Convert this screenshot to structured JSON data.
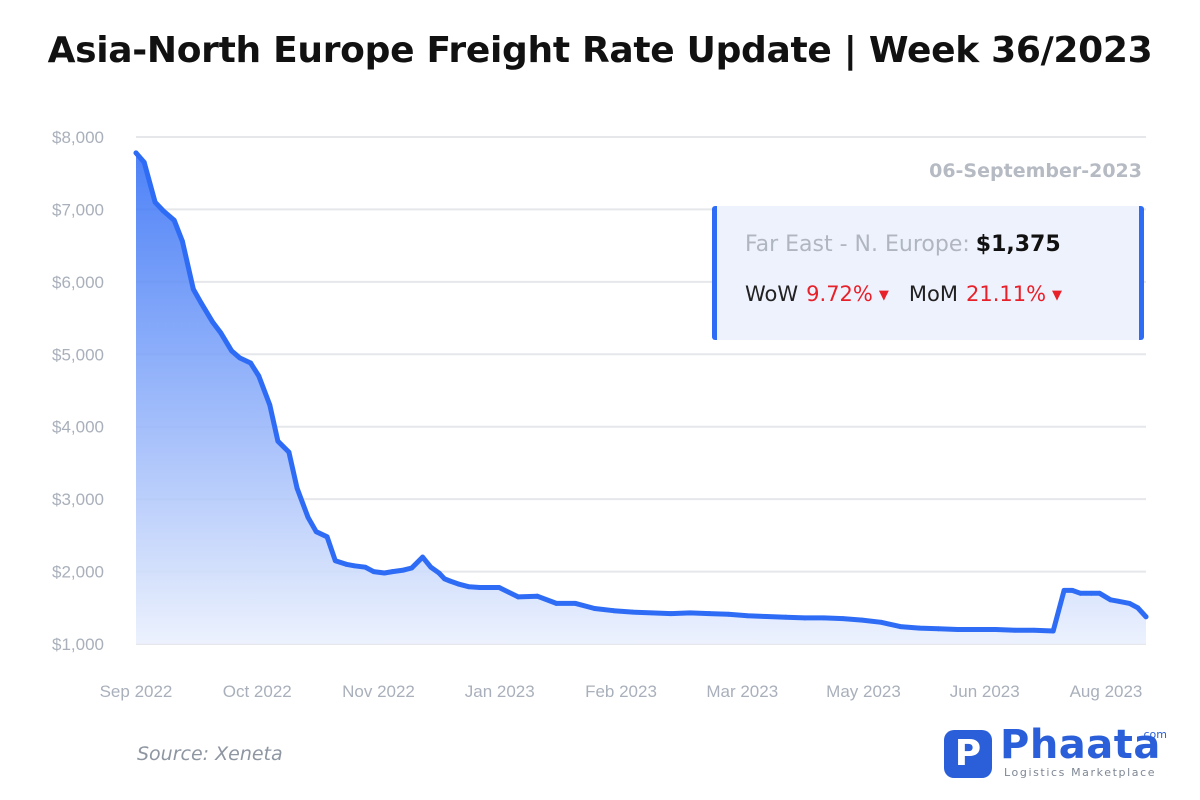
{
  "title": "Asia-North Europe Freight Rate Update | Week 36/2023",
  "info": {
    "date": "06-September-2023",
    "route_label": "Far East - N. Europe:",
    "route_value": "$1,375",
    "wow_label": "WoW",
    "wow_value": "9.72%",
    "mom_label": "MoM",
    "mom_value": "21.11%",
    "change_direction": "down",
    "down_color": "#e8202a"
  },
  "source": "Source: Xeneta",
  "logo": {
    "name": "Phaata",
    "domain_suffix": ".com",
    "tagline": "Logistics Marketplace",
    "mark_letter": "P"
  },
  "colors": {
    "line": "#2f6cf6",
    "area_top": "#2f6cf6",
    "area_bottom": "#eaf0fd",
    "grid": "#e5e7eb",
    "accent": "#2a5fd9"
  },
  "chart_data": {
    "type": "area",
    "title": "Asia-North Europe Freight Rate Update | Week 36/2023",
    "xlabel": "",
    "ylabel": "",
    "series": [
      {
        "name": "Far East - N. Europe"
      }
    ],
    "x_ticks": [
      "Sep 2022",
      "Oct 2022",
      "Nov 2022",
      "Jan 2023",
      "Feb 2023",
      "Mar 2023",
      "May 2023",
      "Jun 2023",
      "Aug 2023"
    ],
    "y_ticks": [
      "$1,000",
      "$2,000",
      "$3,000",
      "$4,000",
      "$5,000",
      "$6,000",
      "$7,000",
      "$8,000"
    ],
    "ylim": [
      1000,
      8000
    ],
    "xlim": [
      "2022-09-01",
      "2023-09-06"
    ],
    "grid": "horizontal",
    "x": [
      "2022-09-01",
      "2022-09-04",
      "2022-09-08",
      "2022-09-11",
      "2022-09-15",
      "2022-09-18",
      "2022-09-22",
      "2022-09-25",
      "2022-09-29",
      "2022-10-02",
      "2022-10-06",
      "2022-10-09",
      "2022-10-13",
      "2022-10-16",
      "2022-10-20",
      "2022-10-23",
      "2022-10-27",
      "2022-10-30",
      "2022-11-03",
      "2022-11-06",
      "2022-11-10",
      "2022-11-13",
      "2022-11-17",
      "2022-11-20",
      "2022-11-24",
      "2022-11-27",
      "2022-12-01",
      "2022-12-04",
      "2022-12-08",
      "2022-12-11",
      "2022-12-15",
      "2022-12-18",
      "2022-12-21",
      "2022-12-23",
      "2022-12-25",
      "2022-12-28",
      "2023-01-01",
      "2023-01-05",
      "2023-01-12",
      "2023-01-19",
      "2023-01-26",
      "2023-02-02",
      "2023-02-09",
      "2023-02-16",
      "2023-02-23",
      "2023-03-02",
      "2023-03-09",
      "2023-03-16",
      "2023-03-23",
      "2023-03-30",
      "2023-04-06",
      "2023-04-13",
      "2023-04-20",
      "2023-04-27",
      "2023-05-04",
      "2023-05-11",
      "2023-05-18",
      "2023-05-25",
      "2023-06-01",
      "2023-06-08",
      "2023-06-15",
      "2023-06-22",
      "2023-06-29",
      "2023-07-06",
      "2023-07-13",
      "2023-07-20",
      "2023-07-27",
      "2023-08-03",
      "2023-08-07",
      "2023-08-10",
      "2023-08-13",
      "2023-08-17",
      "2023-08-20",
      "2023-08-24",
      "2023-08-27",
      "2023-08-31",
      "2023-09-03",
      "2023-09-06"
    ],
    "values": [
      7780,
      7650,
      7100,
      6980,
      6850,
      6560,
      5900,
      5700,
      5450,
      5300,
      5050,
      4950,
      4880,
      4700,
      4300,
      3800,
      3650,
      3150,
      2750,
      2550,
      2480,
      2150,
      2100,
      2080,
      2060,
      2000,
      1980,
      2000,
      2020,
      2050,
      2200,
      2060,
      1980,
      1900,
      1870,
      1830,
      1790,
      1780,
      1780,
      1650,
      1660,
      1560,
      1560,
      1490,
      1460,
      1440,
      1430,
      1420,
      1430,
      1420,
      1410,
      1390,
      1380,
      1370,
      1360,
      1360,
      1350,
      1330,
      1300,
      1240,
      1220,
      1210,
      1200,
      1200,
      1200,
      1190,
      1190,
      1180,
      1740,
      1740,
      1700,
      1700,
      1700,
      1610,
      1590,
      1560,
      1500,
      1375
    ]
  }
}
